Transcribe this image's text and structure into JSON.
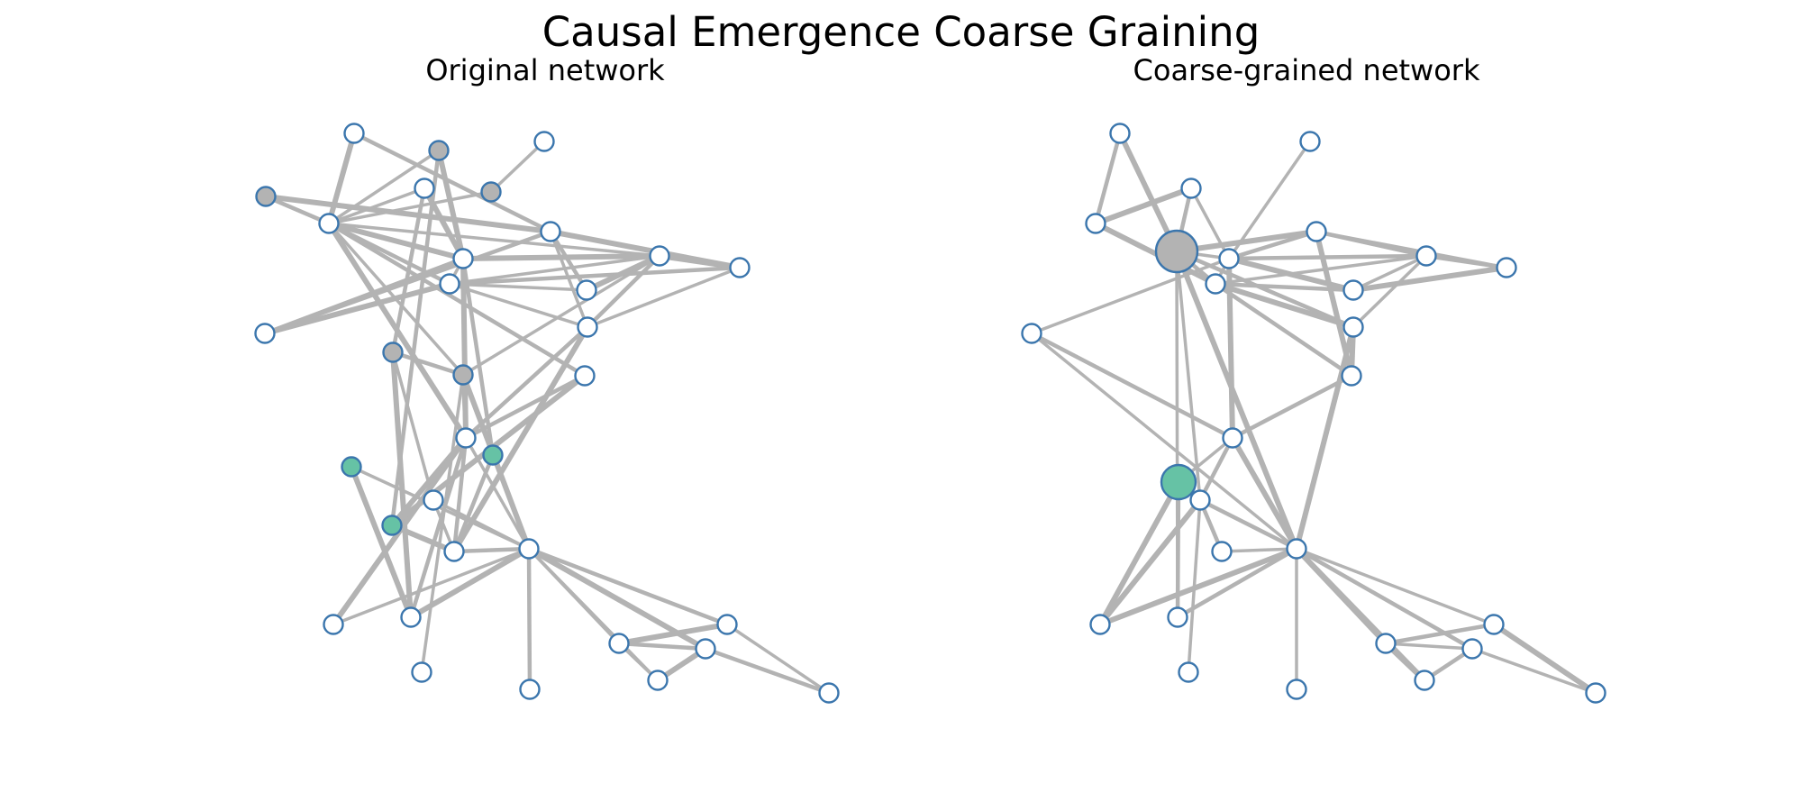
{
  "figure": {
    "title": "Causal Emergence Coarse Graining"
  },
  "panels": {
    "original": {
      "title": "Original network"
    },
    "coarse": {
      "title": "Coarse-grained network"
    }
  },
  "colors": {
    "edge": "#b3b3b3",
    "node_border": "#3b76ad",
    "node_default": "#ffffff",
    "group_gray": "#b3b3b3",
    "group_teal": "#66c2a5"
  }
}
